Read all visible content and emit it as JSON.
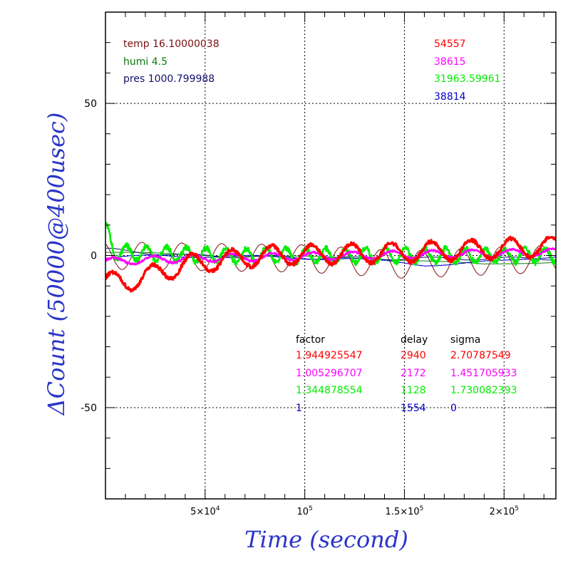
{
  "chart_data": {
    "type": "line",
    "xlabel": "Time (second)",
    "ylabel": "ΔCount (50000@400usec)",
    "xlim": [
      0,
      226000
    ],
    "ylim": [
      -80,
      80
    ],
    "grid": true,
    "x_ticks": [
      {
        "v": 50000,
        "base": "5×10",
        "exp": "4"
      },
      {
        "v": 100000,
        "base": "10",
        "exp": "5"
      },
      {
        "v": 150000,
        "base": "1.5×10",
        "exp": "5"
      },
      {
        "v": 200000,
        "base": "2×10",
        "exp": "5"
      }
    ],
    "y_ticks": [
      {
        "v": 50,
        "label": "50"
      },
      {
        "v": 0,
        "label": "0"
      },
      {
        "v": -50,
        "label": "-50"
      }
    ],
    "env": {
      "temp": "temp 16.10000038",
      "humi": "humi 4.5",
      "pres": "pres 1000.799988"
    },
    "counts": [
      "54557",
      "38615",
      "31963.59961",
      "38814"
    ],
    "table": {
      "headers": [
        "factor",
        "delay",
        "sigma"
      ],
      "rows": [
        [
          "1.944925547",
          "2940",
          "2.70787549"
        ],
        [
          "1.005296707",
          "2172",
          "1.451705933"
        ],
        [
          "1.344878554",
          "1128",
          "1.730082393"
        ],
        [
          "1",
          "1554",
          "0"
        ]
      ]
    },
    "colors": {
      "temp": "#7a1010",
      "humi": "#0a7a0a",
      "pres": "#10106e",
      "red": "#ff0000",
      "magenta": "#ff00ff",
      "green": "#00ee00",
      "blue": "#0000cc",
      "axis_title": "#2a35c8"
    },
    "series": [
      {
        "color": "#ff0000",
        "width": 3.2,
        "period": 20000,
        "amp": 3.2,
        "phase": 0.5,
        "trend": [
          [
            0,
            -9
          ],
          [
            15000,
            -8
          ],
          [
            40000,
            -3
          ],
          [
            80000,
            0
          ],
          [
            150000,
            1
          ],
          [
            226000,
            3
          ]
        ],
        "noise": 0.6
      },
      {
        "color": "#ff00ff",
        "width": 2.6,
        "period": 20000,
        "amp": 1.2,
        "phase": 0.3,
        "trend": [
          [
            0,
            -2
          ],
          [
            40000,
            -1
          ],
          [
            120000,
            0
          ],
          [
            226000,
            1
          ]
        ],
        "noise": 0.3
      },
      {
        "color": "#00ee00",
        "width": 2.6,
        "period": 10000,
        "amp": 2.3,
        "phase": 1.2,
        "trend": [
          [
            0,
            9
          ],
          [
            5000,
            1
          ],
          [
            60000,
            0
          ],
          [
            226000,
            0
          ]
        ],
        "noise": 0.9
      },
      {
        "color": "#0000cc",
        "width": 1,
        "period": 60000,
        "amp": 0.5,
        "phase": 0,
        "trend": [
          [
            0,
            -1
          ],
          [
            30000,
            0
          ],
          [
            120000,
            -1
          ],
          [
            160000,
            -3
          ],
          [
            200000,
            -2
          ],
          [
            226000,
            0
          ]
        ],
        "noise": 0.1
      },
      {
        "color": "#7a1010",
        "width": 1,
        "period": 20000,
        "amp": 4.5,
        "phase": 2.1,
        "trend": [
          [
            0,
            0
          ],
          [
            100000,
            -1
          ],
          [
            150000,
            -3
          ],
          [
            226000,
            -1
          ]
        ],
        "noise": 0
      },
      {
        "color": "#0a7a0a",
        "width": 1,
        "period": 80000,
        "amp": 0.3,
        "phase": 0,
        "trend": [
          [
            0,
            1
          ],
          [
            60000,
            0
          ],
          [
            140000,
            -1
          ],
          [
            190000,
            -3
          ],
          [
            226000,
            -2
          ]
        ],
        "noise": 0
      },
      {
        "color": "#10106e",
        "width": 1,
        "period": 40000,
        "amp": 0.5,
        "phase": 1,
        "trend": [
          [
            0,
            2
          ],
          [
            40000,
            0
          ],
          [
            130000,
            -1
          ],
          [
            226000,
            -1
          ]
        ],
        "noise": 0
      }
    ]
  }
}
